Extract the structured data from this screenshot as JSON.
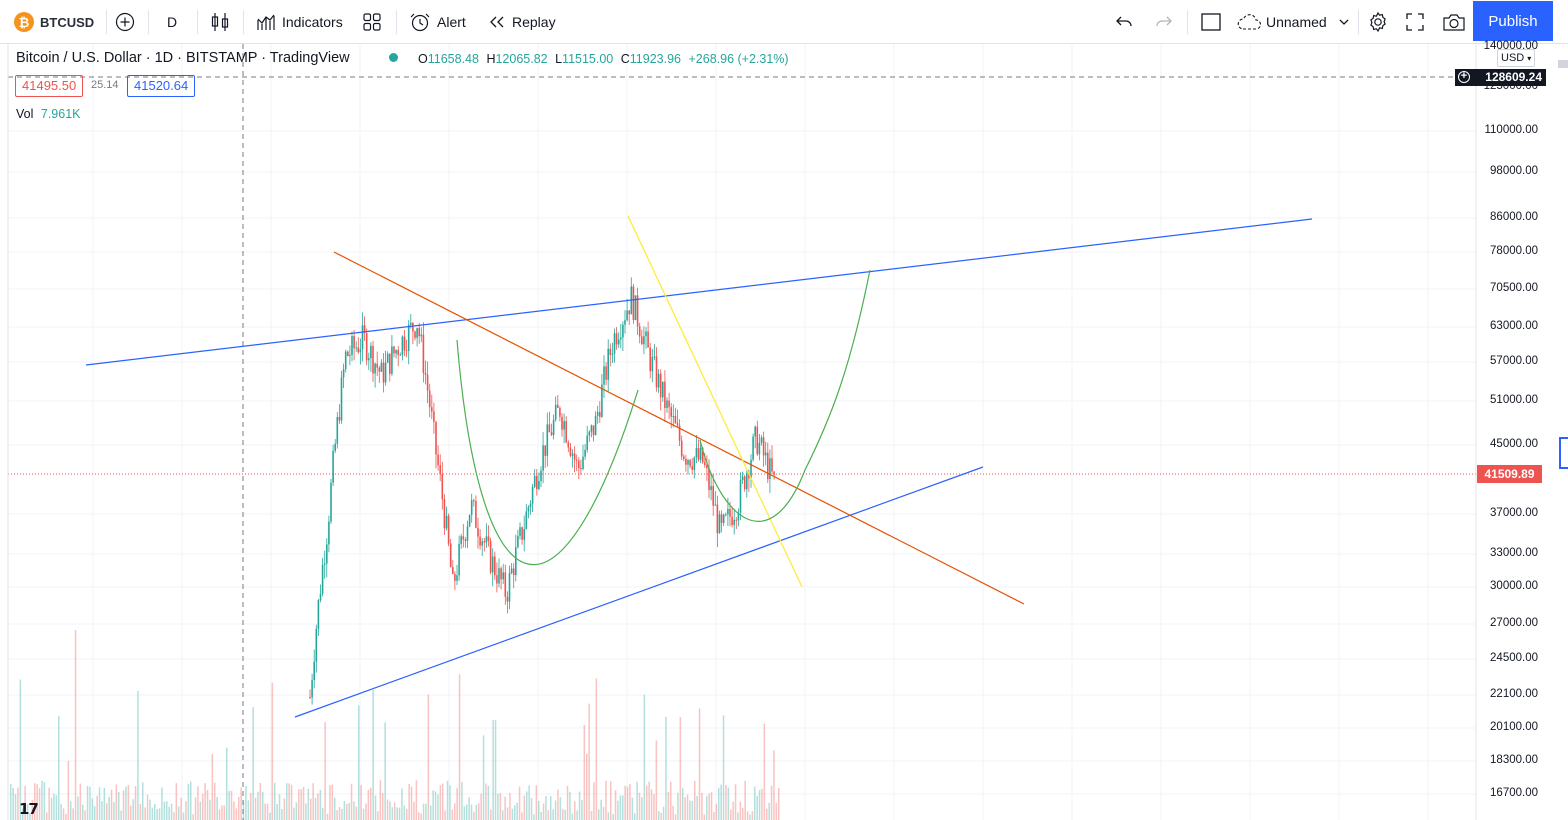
{
  "toolbar": {
    "symbol": "BTCUSD",
    "interval": "D",
    "indicators_label": "Indicators",
    "alert_label": "Alert",
    "replay_label": "Replay",
    "layout_name": "Unnamed",
    "publish_label": "Publish"
  },
  "legend": {
    "title": "Bitcoin / U.S. Dollar · 1D · BITSTAMP · TradingView",
    "open_label": "O",
    "open": "11658.48",
    "high_label": "H",
    "high": "12065.82",
    "low_label": "L",
    "low": "11515.00",
    "close_label": "C",
    "close": "11923.96",
    "change": "+268.96 (+2.31%)",
    "bid": "41495.50",
    "spread": "25.14",
    "ask": "41520.64",
    "vol_label": "Vol",
    "vol_value": "7.961K"
  },
  "axis": {
    "currency": "USD",
    "crosshair_price": "128609.24",
    "last_price": "41509.89",
    "labels": [
      "140000.00",
      "125000.00",
      "110000.00",
      "98000.00",
      "86000.00",
      "78000.00",
      "70500.00",
      "63000.00",
      "57000.00",
      "51000.00",
      "45000.00",
      "37000.00",
      "33000.00",
      "30000.00",
      "27000.00",
      "24500.00",
      "22100.00",
      "20100.00",
      "18300.00",
      "16700.00"
    ]
  },
  "colors": {
    "up": "#26a69a",
    "down": "#ef5350",
    "accent": "#2962ff",
    "trend_blue": "#2962ff",
    "trend_orange": "#e65100",
    "trend_yellow": "#ffeb3b",
    "arc_green": "#4caf50"
  },
  "chart_data": {
    "type": "candlestick",
    "symbol": "BTCUSD",
    "interval": "1D",
    "y_scale": "log",
    "ylim": [
      16000,
      140000
    ],
    "last_price": 41509.89,
    "approx_path": [
      22000,
      36000,
      58000,
      61000,
      55000,
      60000,
      64000,
      45000,
      30000,
      38000,
      33000,
      29500,
      36000,
      44000,
      50000,
      42000,
      48000,
      61000,
      68500,
      58000,
      50000,
      44000,
      43000,
      35000,
      38500,
      46000,
      40500
    ]
  }
}
